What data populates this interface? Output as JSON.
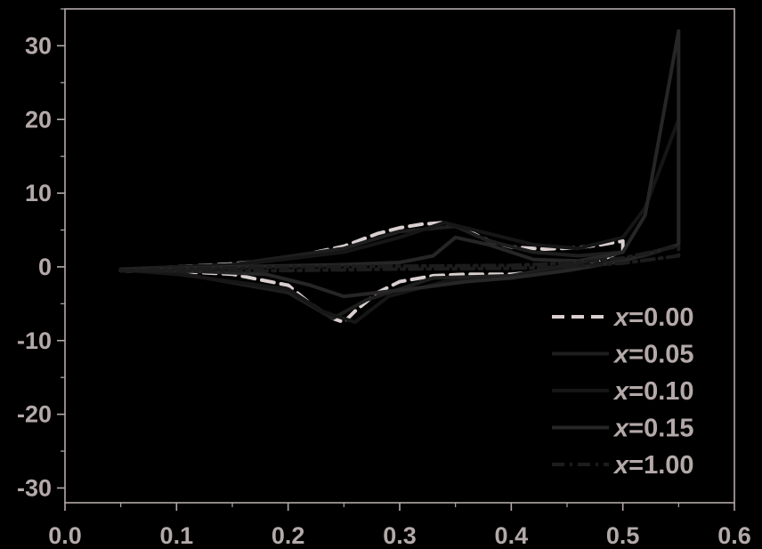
{
  "chart_data": {
    "type": "line",
    "title": "",
    "xlabel": "",
    "ylabel": "",
    "xlim": [
      0.0,
      0.6
    ],
    "ylim": [
      -32,
      35
    ],
    "x_ticks": [
      "0.0",
      "0.1",
      "0.2",
      "0.3",
      "0.4",
      "0.5",
      "0.6"
    ],
    "y_ticks": [
      "30",
      "20",
      "10",
      "0",
      "-10",
      "-20",
      "-30"
    ],
    "grid": false,
    "legend_position": "bottom-right",
    "colors": {
      "background": "#000000",
      "axis": "#b4a9a9",
      "text": "#b4a9a9"
    },
    "series": [
      {
        "name": "x=0.00",
        "name_var": "x",
        "name_val": "=0.00",
        "color": "#d9cfcf",
        "dash": "dashed",
        "x": [
          0.05,
          0.1,
          0.15,
          0.2,
          0.25,
          0.28,
          0.3,
          0.32,
          0.34,
          0.36,
          0.38,
          0.4,
          0.43,
          0.46,
          0.48,
          0.5,
          0.5,
          0.47,
          0.44,
          0.4,
          0.36,
          0.33,
          0.3,
          0.28,
          0.26,
          0.25,
          0.24,
          0.22,
          0.2,
          0.15,
          0.1,
          0.05
        ],
        "y": [
          -0.5,
          0.0,
          0.4,
          1.2,
          2.8,
          4.5,
          5.3,
          5.8,
          6.0,
          5.0,
          3.5,
          2.7,
          2.4,
          2.6,
          3.0,
          3.5,
          2.2,
          0.2,
          -0.5,
          -1.0,
          -1.0,
          -1.2,
          -2.0,
          -3.5,
          -6.0,
          -7.5,
          -7.0,
          -5.0,
          -2.5,
          -1.0,
          -0.6,
          -0.5
        ]
      },
      {
        "name": "x=0.05",
        "name_var": "x",
        "name_val": "=0.05",
        "color": "#1e1e1e",
        "dash": "solid",
        "x": [
          0.05,
          0.15,
          0.25,
          0.3,
          0.35,
          0.38,
          0.42,
          0.46,
          0.5,
          0.46,
          0.4,
          0.33,
          0.27,
          0.24,
          0.2,
          0.1,
          0.05
        ],
        "y": [
          -0.3,
          0.3,
          2.5,
          4.8,
          5.5,
          3.5,
          2.0,
          1.5,
          2.0,
          0.5,
          -1.2,
          -1.5,
          -4.5,
          -7.0,
          -3.5,
          -0.8,
          -0.3
        ]
      },
      {
        "name": "x=0.10",
        "name_var": "x",
        "name_val": "=0.10",
        "color": "#161616",
        "dash": "solid",
        "x": [
          0.05,
          0.15,
          0.25,
          0.3,
          0.34,
          0.38,
          0.42,
          0.46,
          0.5,
          0.52,
          0.55,
          0.55,
          0.52,
          0.48,
          0.44,
          0.4,
          0.34,
          0.29,
          0.26,
          0.23,
          0.2,
          0.1,
          0.05
        ],
        "y": [
          -0.4,
          0.2,
          2.0,
          4.0,
          6.0,
          4.5,
          3.0,
          2.5,
          4.0,
          8.0,
          20.0,
          3.0,
          1.5,
          0.5,
          -0.5,
          -1.5,
          -2.0,
          -4.0,
          -7.5,
          -6.0,
          -3.0,
          -1.0,
          -0.4
        ]
      },
      {
        "name": "x=0.15",
        "name_var": "x",
        "name_val": "=0.15",
        "color": "#262626",
        "dash": "solid",
        "x": [
          0.05,
          0.15,
          0.25,
          0.3,
          0.33,
          0.35,
          0.38,
          0.42,
          0.46,
          0.5,
          0.52,
          0.55,
          0.55,
          0.5,
          0.45,
          0.4,
          0.36,
          0.32,
          0.28,
          0.25,
          0.22,
          0.18,
          0.1,
          0.05
        ],
        "y": [
          -0.4,
          0.0,
          0.3,
          0.6,
          1.5,
          4.0,
          3.0,
          1.0,
          0.8,
          2.0,
          7.0,
          32.0,
          3.0,
          0.8,
          -0.5,
          -1.5,
          -2.0,
          -2.8,
          -3.5,
          -4.0,
          -2.5,
          -1.0,
          -0.5,
          -0.4
        ]
      },
      {
        "name": "x=1.00",
        "name_var": "x",
        "name_val": "=1.00",
        "color": "#1c1c1c",
        "dash": "dashdot",
        "x": [
          0.05,
          0.1,
          0.2,
          0.3,
          0.4,
          0.45,
          0.5,
          0.55,
          0.55,
          0.5,
          0.45,
          0.4,
          0.3,
          0.2,
          0.1,
          0.05
        ],
        "y": [
          -0.5,
          -0.3,
          0.0,
          0.1,
          0.2,
          0.5,
          1.2,
          2.8,
          1.5,
          0.5,
          0.0,
          -0.2,
          -0.3,
          -0.5,
          -0.6,
          -0.5
        ]
      }
    ]
  }
}
